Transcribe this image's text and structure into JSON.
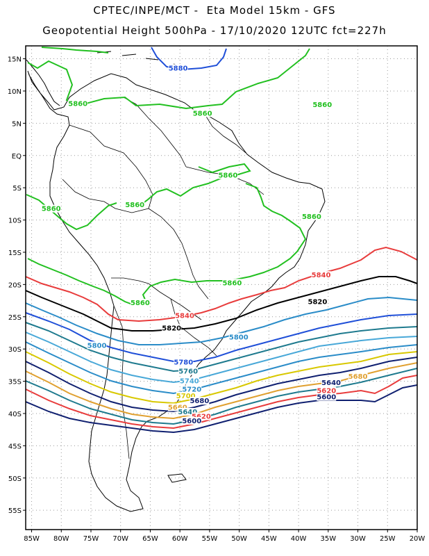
{
  "title": {
    "line1": "CPTEC/INPE/MCT -  Eta Model 15km - GFS",
    "line2": "Geopotential Height 500hPa - 17/10/2020 12UTC fct=227h"
  },
  "map": {
    "lat_labels": [
      "15N",
      "10N",
      "5N",
      "EQ",
      "5S",
      "10S",
      "15S",
      "20S",
      "25S",
      "30S",
      "35S",
      "40S",
      "45S",
      "50S",
      "55S"
    ],
    "lon_labels": [
      "85W",
      "80W",
      "75W",
      "70W",
      "65W",
      "60W",
      "55W",
      "50W",
      "45W",
      "40W",
      "35W",
      "30W",
      "25W",
      "20W"
    ],
    "lat_range": [
      17,
      -58
    ],
    "lon_range": [
      -86,
      -20
    ],
    "contour_labels": [
      {
        "text": "5880",
        "color": "#1f4fd8",
        "lon": -60.3,
        "lat": 13.3
      },
      {
        "text": "5860",
        "color": "#22c020",
        "lon": -77.2,
        "lat": 7.8
      },
      {
        "text": "5860",
        "color": "#22c020",
        "lon": -56.2,
        "lat": 6.3
      },
      {
        "text": "5860",
        "color": "#22c020",
        "lon": -36.0,
        "lat": 7.6
      },
      {
        "text": "5860",
        "color": "#22c020",
        "lon": -51.9,
        "lat": -3.3
      },
      {
        "text": "5860",
        "color": "#22c020",
        "lon": -81.7,
        "lat": -8.5
      },
      {
        "text": "5860",
        "color": "#22c020",
        "lon": -67.6,
        "lat": -7.9
      },
      {
        "text": "5860",
        "color": "#22c020",
        "lon": -37.8,
        "lat": -9.7
      },
      {
        "text": "5860",
        "color": "#22c020",
        "lon": -51.2,
        "lat": -20.0
      },
      {
        "text": "5860",
        "color": "#22c020",
        "lon": -66.7,
        "lat": -23.1
      },
      {
        "text": "5840",
        "color": "#e83c3c",
        "lon": -36.2,
        "lat": -18.8
      },
      {
        "text": "5840",
        "color": "#e83c3c",
        "lon": -59.2,
        "lat": -25.1
      },
      {
        "text": "5820",
        "color": "#000000",
        "lon": -36.8,
        "lat": -22.9
      },
      {
        "text": "5820",
        "color": "#000000",
        "lon": -61.4,
        "lat": -27.0
      },
      {
        "text": "5800",
        "color": "#2a8cc8",
        "lon": -74.0,
        "lat": -29.7
      },
      {
        "text": "5800",
        "color": "#2a8cc8",
        "lon": -50.1,
        "lat": -28.4
      },
      {
        "text": "5780",
        "color": "#1f4fd8",
        "lon": -59.4,
        "lat": -32.3
      },
      {
        "text": "5760",
        "color": "#1e7a8e",
        "lon": -58.6,
        "lat": -33.7
      },
      {
        "text": "5740",
        "color": "#48a8d8",
        "lon": -58.4,
        "lat": -35.2
      },
      {
        "text": "5720",
        "color": "#2a8cc8",
        "lon": -58.0,
        "lat": -36.5
      },
      {
        "text": "5700",
        "color": "#d8c800",
        "lon": -59.0,
        "lat": -37.5
      },
      {
        "text": "5680",
        "color": "#102070",
        "lon": -56.7,
        "lat": -38.3
      },
      {
        "text": "5660",
        "color": "#e0a030",
        "lon": -60.4,
        "lat": -39.3
      },
      {
        "text": "5640",
        "color": "#1e7a8e",
        "lon": -58.7,
        "lat": -40.0
      },
      {
        "text": "5620",
        "color": "#e83c3c",
        "lon": -56.4,
        "lat": -40.7
      },
      {
        "text": "5600",
        "color": "#102070",
        "lon": -58.0,
        "lat": -41.4
      },
      {
        "text": "5680",
        "color": "#e0a030",
        "lon": -30.0,
        "lat": -34.5
      },
      {
        "text": "5640",
        "color": "#102070",
        "lon": -34.5,
        "lat": -35.5
      },
      {
        "text": "5620",
        "color": "#e83c3c",
        "lon": -35.3,
        "lat": -36.7
      },
      {
        "text": "5600",
        "color": "#102070",
        "lon": -35.3,
        "lat": -37.7
      }
    ]
  }
}
